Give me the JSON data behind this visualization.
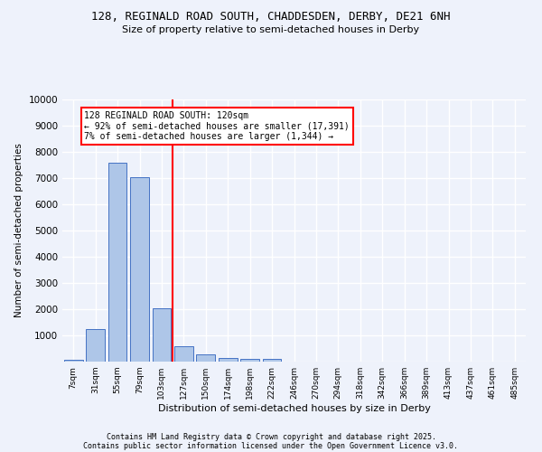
{
  "title": "128, REGINALD ROAD SOUTH, CHADDESDEN, DERBY, DE21 6NH",
  "subtitle": "Size of property relative to semi-detached houses in Derby",
  "xlabel": "Distribution of semi-detached houses by size in Derby",
  "ylabel": "Number of semi-detached properties",
  "categories": [
    "7sqm",
    "31sqm",
    "55sqm",
    "79sqm",
    "103sqm",
    "127sqm",
    "150sqm",
    "174sqm",
    "198sqm",
    "222sqm",
    "246sqm",
    "270sqm",
    "294sqm",
    "318sqm",
    "342sqm",
    "366sqm",
    "389sqm",
    "413sqm",
    "437sqm",
    "461sqm",
    "485sqm"
  ],
  "values": [
    80,
    1250,
    7600,
    7050,
    2050,
    600,
    270,
    150,
    120,
    100,
    0,
    0,
    0,
    0,
    0,
    0,
    0,
    0,
    0,
    0,
    0
  ],
  "bar_color": "#aec6e8",
  "bar_edge_color": "#4472c4",
  "vline_x_index": 5,
  "vline_color": "red",
  "annotation_text": "128 REGINALD ROAD SOUTH: 120sqm\n← 92% of semi-detached houses are smaller (17,391)\n7% of semi-detached houses are larger (1,344) →",
  "annotation_box_color": "white",
  "annotation_box_edge": "red",
  "ylim": [
    0,
    10000
  ],
  "yticks": [
    0,
    1000,
    2000,
    3000,
    4000,
    5000,
    6000,
    7000,
    8000,
    9000,
    10000
  ],
  "background_color": "#eef2fb",
  "grid_color": "#ffffff",
  "footer_line1": "Contains HM Land Registry data © Crown copyright and database right 2025.",
  "footer_line2": "Contains public sector information licensed under the Open Government Licence v3.0."
}
